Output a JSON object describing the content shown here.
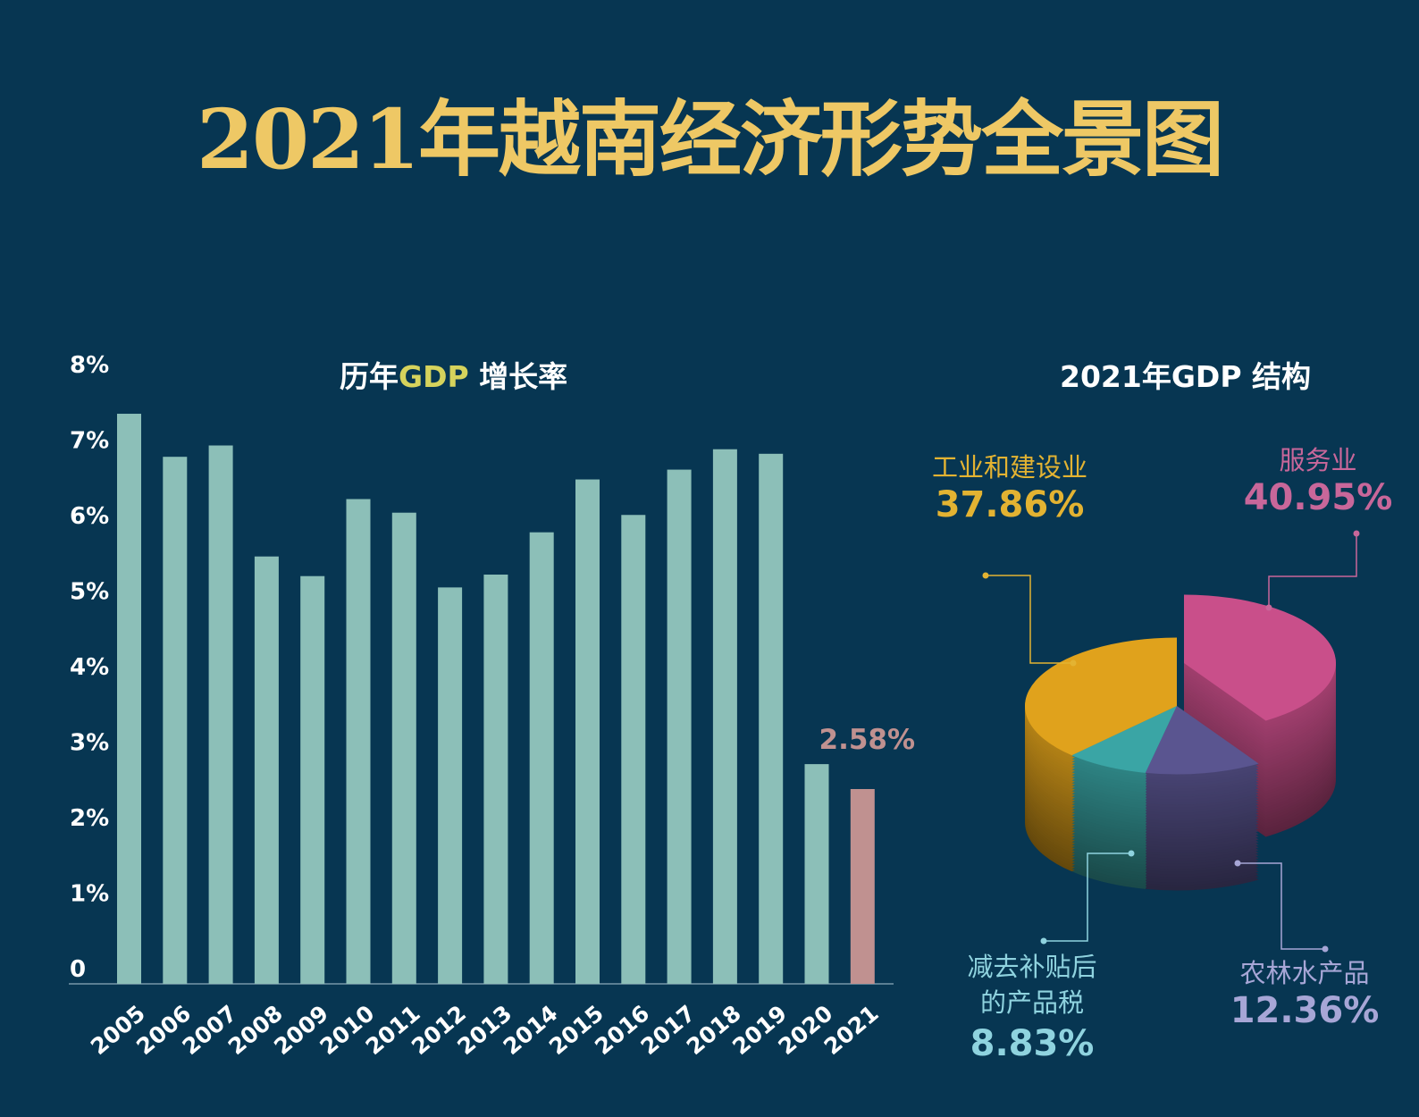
{
  "title": "2021年越南经济形势全景图",
  "chart_data": [
    {
      "type": "bar",
      "title_parts": [
        "历年",
        "GDP",
        " 增长率"
      ],
      "categories": [
        "2005",
        "2006",
        "2007",
        "2008",
        "2009",
        "2010",
        "2011",
        "2012",
        "2013",
        "2014",
        "2015",
        "2016",
        "2017",
        "2018",
        "2019",
        "2020",
        "2021"
      ],
      "values": [
        7.55,
        6.98,
        7.13,
        5.66,
        5.4,
        6.42,
        6.24,
        5.25,
        5.42,
        5.98,
        6.68,
        6.21,
        6.81,
        7.08,
        7.02,
        2.91,
        2.58
      ],
      "yticks": [
        "0",
        "1%",
        "2%",
        "3%",
        "4%",
        "5%",
        "6%",
        "7%",
        "8%"
      ],
      "ylim": [
        0,
        8
      ],
      "annotation": "2.58%",
      "bar_color": "#8cbfb8",
      "highlight_color": "#c09190",
      "grid": false
    },
    {
      "type": "pie",
      "title": "2021年GDP 结构",
      "slices": [
        {
          "label": "服务业",
          "value": 40.95,
          "pct": "40.95%",
          "color": "#c94f8a",
          "text_color": "#c8679a"
        },
        {
          "label": "农林水产品",
          "value": 12.36,
          "pct": "12.36%",
          "color": "#5a5590",
          "text_color": "#a7a6d6"
        },
        {
          "label_lines": [
            "减去补贴后",
            "的产品税"
          ],
          "value": 8.83,
          "pct": "8.83%",
          "color": "#3aa5a5",
          "text_color": "#8fd3df"
        },
        {
          "label": "工业和建设业",
          "value": 37.86,
          "pct": "37.86%",
          "color": "#e0a21c",
          "text_color": "#e3b332"
        }
      ]
    }
  ]
}
